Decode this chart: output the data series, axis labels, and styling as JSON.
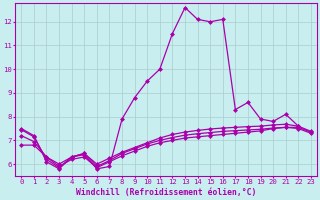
{
  "background_color": "#c8eef0",
  "grid_color": "#aacccc",
  "line_color": "#aa00aa",
  "marker": "D",
  "markersize": 2.5,
  "linewidth": 0.9,
  "xlabel": "Windchill (Refroidissement éolien,°C)",
  "xlabel_fontsize": 5.8,
  "tick_fontsize": 5.2,
  "xlim": [
    -0.5,
    23.5
  ],
  "ylim": [
    5.5,
    12.8
  ],
  "yticks": [
    6,
    7,
    8,
    9,
    10,
    11,
    12
  ],
  "xticks": [
    0,
    1,
    2,
    3,
    4,
    5,
    6,
    7,
    8,
    9,
    10,
    11,
    12,
    13,
    14,
    15,
    16,
    17,
    18,
    19,
    20,
    21,
    22,
    23
  ],
  "curve1_x": [
    0,
    1,
    2,
    3,
    4,
    5,
    6,
    7,
    8,
    9,
    10,
    11,
    12,
    13,
    14,
    15,
    16,
    17,
    18,
    19,
    20,
    21,
    22
  ],
  "curve1_y": [
    7.5,
    7.2,
    6.1,
    5.8,
    6.3,
    6.4,
    5.8,
    5.9,
    7.9,
    8.8,
    9.5,
    10.0,
    11.5,
    12.6,
    12.1,
    12.0,
    12.1,
    8.3,
    8.6,
    7.9,
    7.8,
    8.1,
    7.6
  ],
  "curve2_x": [
    0,
    1,
    2,
    3,
    4,
    5,
    6,
    7,
    8,
    9,
    10,
    11,
    12,
    13,
    14,
    15,
    16,
    17,
    18,
    19,
    20,
    21,
    22,
    23
  ],
  "curve2_y": [
    6.8,
    6.8,
    6.3,
    5.9,
    6.2,
    6.3,
    5.85,
    6.1,
    6.35,
    6.55,
    6.75,
    6.9,
    7.0,
    7.1,
    7.15,
    7.2,
    7.25,
    7.3,
    7.35,
    7.4,
    7.5,
    7.55,
    7.55,
    7.35
  ],
  "curve3_x": [
    0,
    1,
    2,
    3,
    4,
    5,
    6,
    7,
    8,
    9,
    10,
    11,
    12,
    13,
    14,
    15,
    16,
    17,
    18,
    19,
    20,
    21,
    22,
    23
  ],
  "curve3_y": [
    7.2,
    6.95,
    6.3,
    6.0,
    6.3,
    6.45,
    6.0,
    6.25,
    6.5,
    6.7,
    6.9,
    7.1,
    7.25,
    7.35,
    7.42,
    7.48,
    7.52,
    7.55,
    7.58,
    7.6,
    7.65,
    7.68,
    7.6,
    7.38
  ],
  "curve4_x": [
    0,
    1,
    2,
    3,
    4,
    5,
    6,
    7,
    8,
    9,
    10,
    11,
    12,
    13,
    14,
    15,
    16,
    17,
    18,
    19,
    20,
    21,
    22,
    23
  ],
  "curve4_y": [
    7.45,
    7.15,
    6.2,
    5.85,
    6.3,
    6.45,
    5.9,
    6.15,
    6.45,
    6.65,
    6.85,
    7.0,
    7.12,
    7.22,
    7.28,
    7.33,
    7.38,
    7.41,
    7.44,
    7.47,
    7.52,
    7.55,
    7.5,
    7.3
  ]
}
